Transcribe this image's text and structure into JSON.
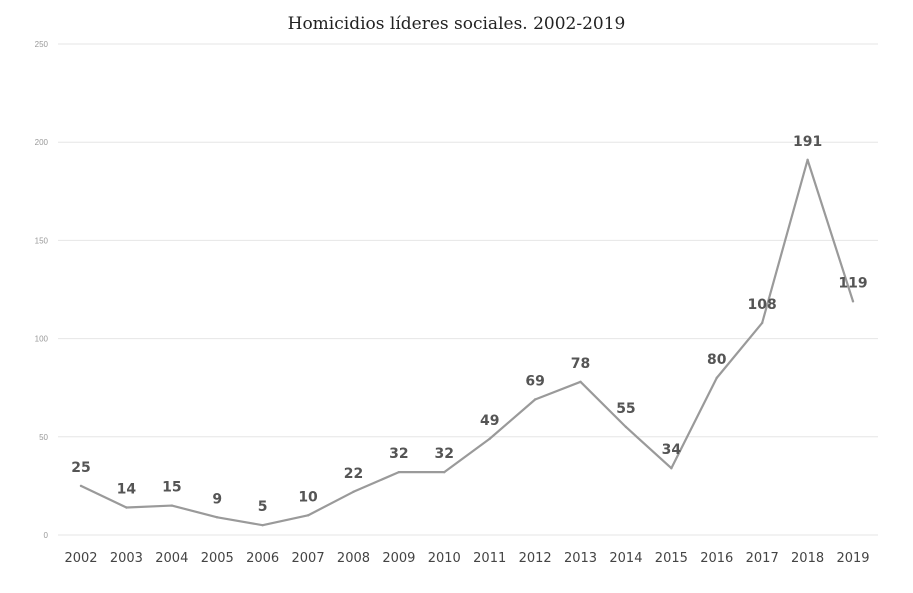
{
  "chart_data": {
    "type": "line",
    "title": "Homicidios líderes sociales. 2002-2019",
    "xlabel": "",
    "ylabel": "",
    "ylim": [
      0,
      250
    ],
    "yticks": [
      0,
      50,
      100,
      150,
      200,
      250
    ],
    "grid": true,
    "categories": [
      "2002",
      "2003",
      "2004",
      "2005",
      "2006",
      "2007",
      "2008",
      "2009",
      "2010",
      "2011",
      "2012",
      "2013",
      "2014",
      "2015",
      "2016",
      "2017",
      "2018",
      "2019"
    ],
    "series": [
      {
        "name": "Homicidios",
        "values": [
          25,
          14,
          15,
          9,
          5,
          10,
          22,
          32,
          32,
          49,
          69,
          78,
          55,
          34,
          80,
          108,
          191,
          119
        ],
        "color": "#9a9a9a"
      }
    ],
    "gridline_color": "#e6e6e6",
    "label_color": "#555555"
  }
}
